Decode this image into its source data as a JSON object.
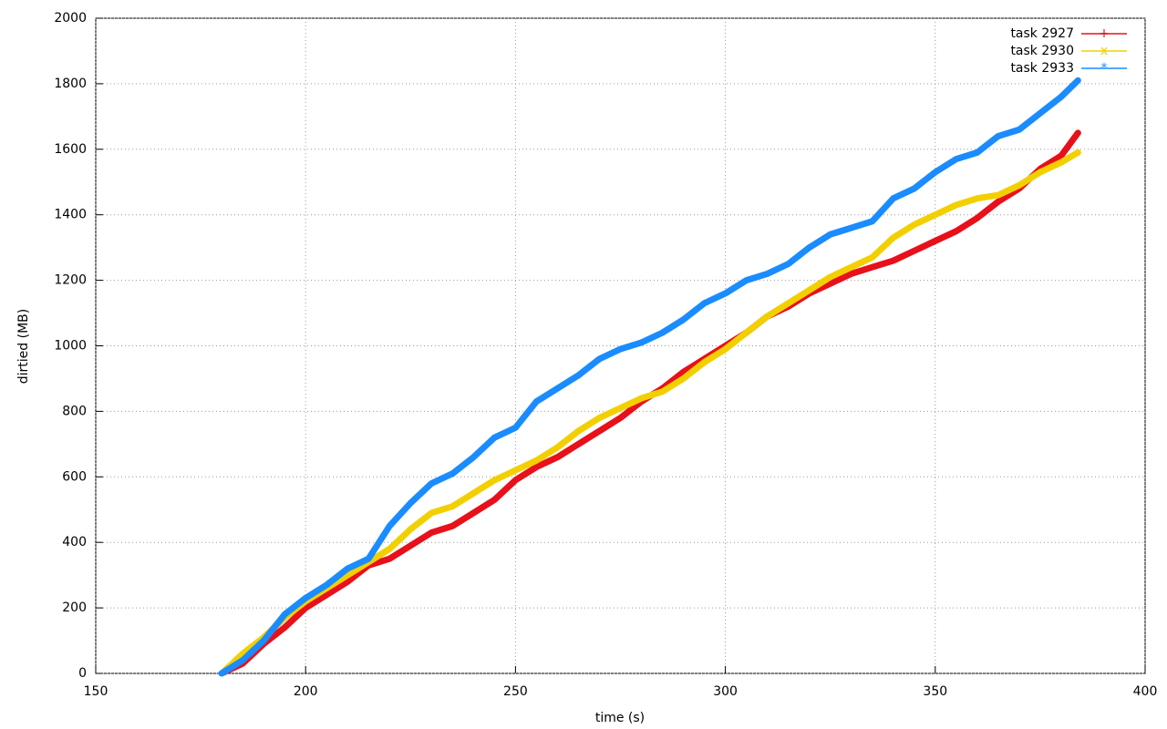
{
  "chart_data": {
    "type": "line",
    "xlabel": "time (s)",
    "ylabel": "dirtied (MB)",
    "x": [
      180,
      185,
      190,
      195,
      200,
      205,
      210,
      215,
      220,
      225,
      230,
      235,
      240,
      245,
      250,
      255,
      260,
      265,
      270,
      275,
      280,
      285,
      290,
      295,
      300,
      305,
      310,
      315,
      320,
      325,
      330,
      335,
      340,
      345,
      350,
      355,
      360,
      365,
      370,
      375,
      380,
      384
    ],
    "series": [
      {
        "name": "task 2927",
        "color": "#e8101a",
        "marker": "+",
        "values": [
          0,
          30,
          90,
          140,
          200,
          240,
          280,
          330,
          350,
          390,
          430,
          450,
          490,
          530,
          590,
          630,
          660,
          700,
          740,
          780,
          830,
          870,
          920,
          960,
          1000,
          1040,
          1090,
          1120,
          1160,
          1190,
          1220,
          1240,
          1260,
          1290,
          1320,
          1350,
          1390,
          1440,
          1480,
          1540,
          1580,
          1650
        ]
      },
      {
        "name": "task 2930",
        "color": "#f2d000",
        "marker": "x",
        "values": [
          0,
          60,
          110,
          170,
          220,
          260,
          300,
          340,
          380,
          440,
          490,
          510,
          550,
          590,
          620,
          650,
          690,
          740,
          780,
          810,
          840,
          860,
          900,
          950,
          990,
          1040,
          1090,
          1130,
          1170,
          1210,
          1240,
          1270,
          1330,
          1370,
          1400,
          1430,
          1450,
          1460,
          1490,
          1530,
          1560,
          1590
        ]
      },
      {
        "name": "task 2933",
        "color": "#1a8cff",
        "marker": "*",
        "values": [
          0,
          40,
          100,
          180,
          230,
          270,
          320,
          350,
          450,
          520,
          580,
          610,
          660,
          720,
          750,
          830,
          870,
          910,
          960,
          990,
          1010,
          1040,
          1080,
          1130,
          1160,
          1200,
          1220,
          1250,
          1300,
          1340,
          1360,
          1380,
          1450,
          1480,
          1530,
          1570,
          1590,
          1640,
          1660,
          1710,
          1760,
          1810
        ]
      }
    ],
    "xlim": [
      150,
      400
    ],
    "xticks": [
      150,
      200,
      250,
      300,
      350,
      400
    ],
    "ylim": [
      0,
      2000
    ],
    "yticks": [
      0,
      200,
      400,
      600,
      800,
      1000,
      1200,
      1400,
      1600,
      1800,
      2000
    ],
    "grid": true,
    "legend": "top right"
  }
}
